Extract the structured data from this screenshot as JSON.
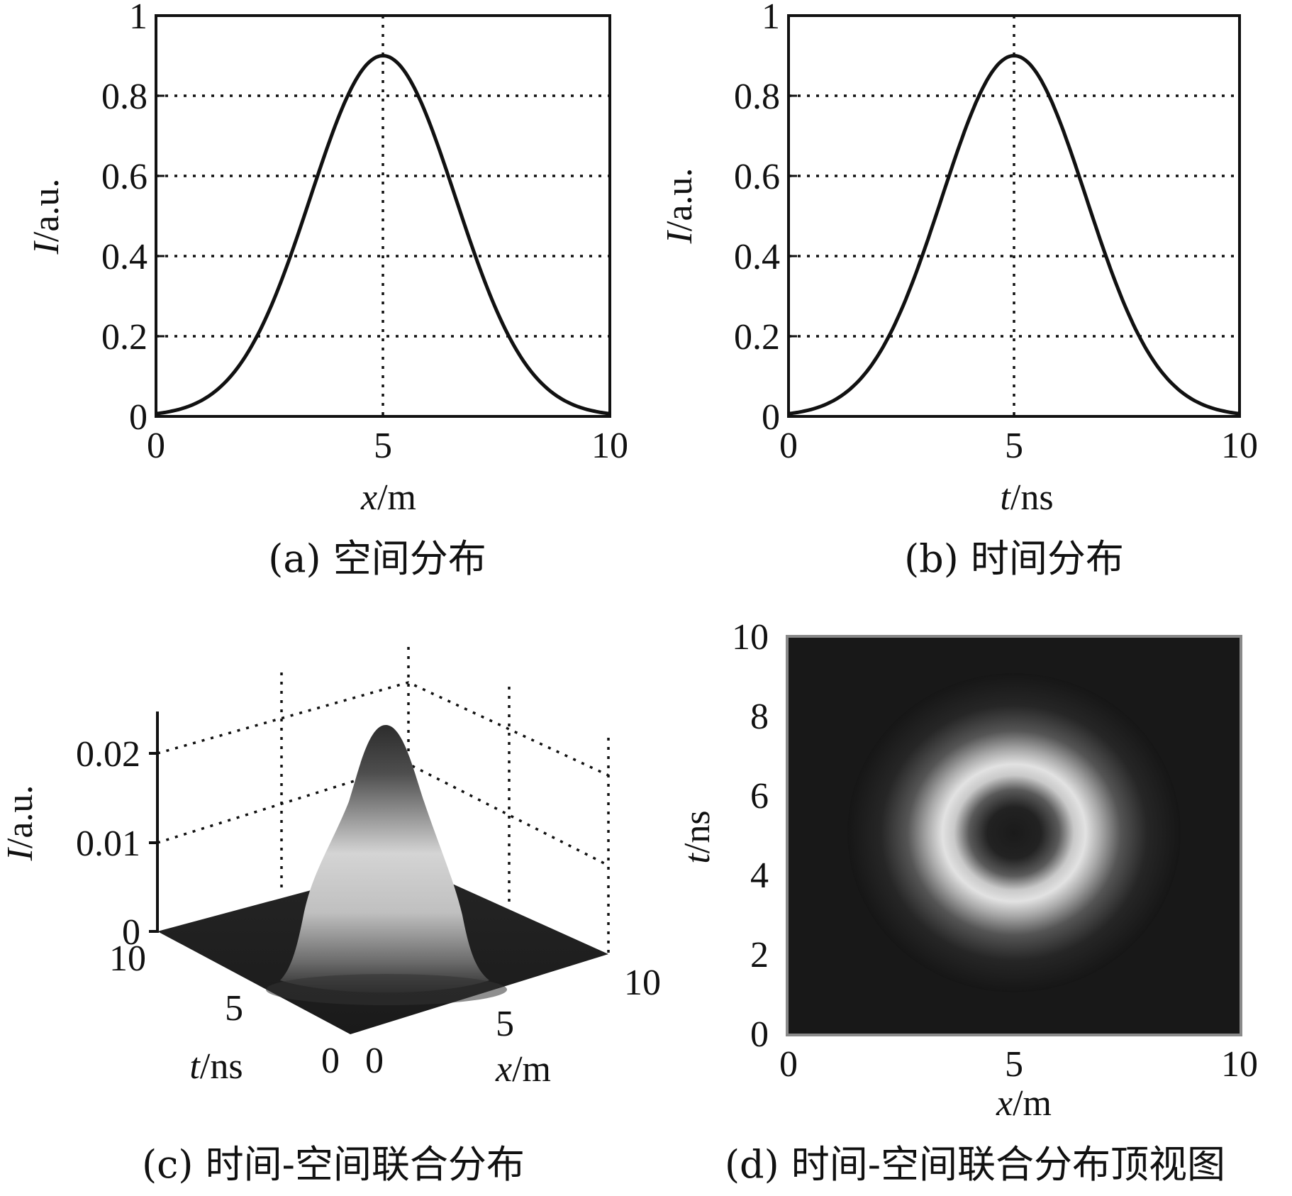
{
  "chart_data": [
    {
      "type": "line",
      "panel": "a",
      "caption": "(a) 空间分布",
      "x_var": "x",
      "x_unit": "/m",
      "y_var": "I",
      "y_unit": "/a.u.",
      "xlim": [
        0,
        10
      ],
      "ylim": [
        0,
        1
      ],
      "xticks": [
        "0",
        "5",
        "10"
      ],
      "yticks": [
        "0",
        "0.2",
        "0.4",
        "0.6",
        "0.8",
        "1"
      ],
      "grid": true,
      "peak_x": 5,
      "peak_y": 0.9,
      "sigma": 1.6,
      "x": [
        0,
        0.5,
        1,
        1.5,
        2,
        2.5,
        3,
        3.5,
        4,
        4.5,
        5,
        5.5,
        6,
        6.5,
        7,
        7.5,
        8,
        8.5,
        9,
        9.5,
        10
      ],
      "y": [
        0.007,
        0.017,
        0.039,
        0.081,
        0.155,
        0.266,
        0.413,
        0.579,
        0.741,
        0.856,
        0.9,
        0.856,
        0.741,
        0.579,
        0.413,
        0.266,
        0.155,
        0.081,
        0.039,
        0.017,
        0.007
      ]
    },
    {
      "type": "line",
      "panel": "b",
      "caption": "(b) 时间分布",
      "x_var": "t",
      "x_unit": "/ns",
      "y_var": "I",
      "y_unit": "/a.u.",
      "xlim": [
        0,
        10
      ],
      "ylim": [
        0,
        1
      ],
      "xticks": [
        "0",
        "5",
        "10"
      ],
      "yticks": [
        "0",
        "0.2",
        "0.4",
        "0.6",
        "0.8",
        "1"
      ],
      "grid": true,
      "peak_x": 5,
      "peak_y": 0.9,
      "sigma": 1.6,
      "x": [
        0,
        0.5,
        1,
        1.5,
        2,
        2.5,
        3,
        3.5,
        4,
        4.5,
        5,
        5.5,
        6,
        6.5,
        7,
        7.5,
        8,
        8.5,
        9,
        9.5,
        10
      ],
      "y": [
        0.007,
        0.017,
        0.039,
        0.081,
        0.155,
        0.266,
        0.413,
        0.579,
        0.741,
        0.856,
        0.9,
        0.856,
        0.741,
        0.579,
        0.413,
        0.266,
        0.155,
        0.081,
        0.039,
        0.017,
        0.007
      ]
    },
    {
      "type": "surface",
      "panel": "c",
      "caption": "(c) 时间-空间联合分布",
      "x_var": "x",
      "x_unit": "/m",
      "t_var": "t",
      "t_unit": "/ns",
      "z_var": "I",
      "z_unit": "/a.u.",
      "xlim": [
        0,
        10
      ],
      "tlim": [
        0,
        10
      ],
      "zlim": [
        0,
        0.025
      ],
      "zticks": [
        "0",
        "0.01",
        "0.02"
      ],
      "xticks": [
        "0",
        "5",
        "10"
      ],
      "tticks": [
        "0",
        "5",
        "10"
      ],
      "peak": {
        "x": 5,
        "t": 5,
        "I": 0.024
      }
    },
    {
      "type": "heatmap",
      "panel": "d",
      "caption": "(d) 时间-空间联合分布顶视图",
      "x_var": "x",
      "x_unit": "/m",
      "y_var": "t",
      "y_unit": "/ns",
      "xlim": [
        0,
        10
      ],
      "ylim": [
        0,
        10
      ],
      "xticks": [
        "0",
        "5",
        "10"
      ],
      "yticks": [
        "0",
        "2",
        "4",
        "6",
        "8",
        "10"
      ],
      "feature": "bright ring centred at (5, 5) with dark centre"
    }
  ]
}
